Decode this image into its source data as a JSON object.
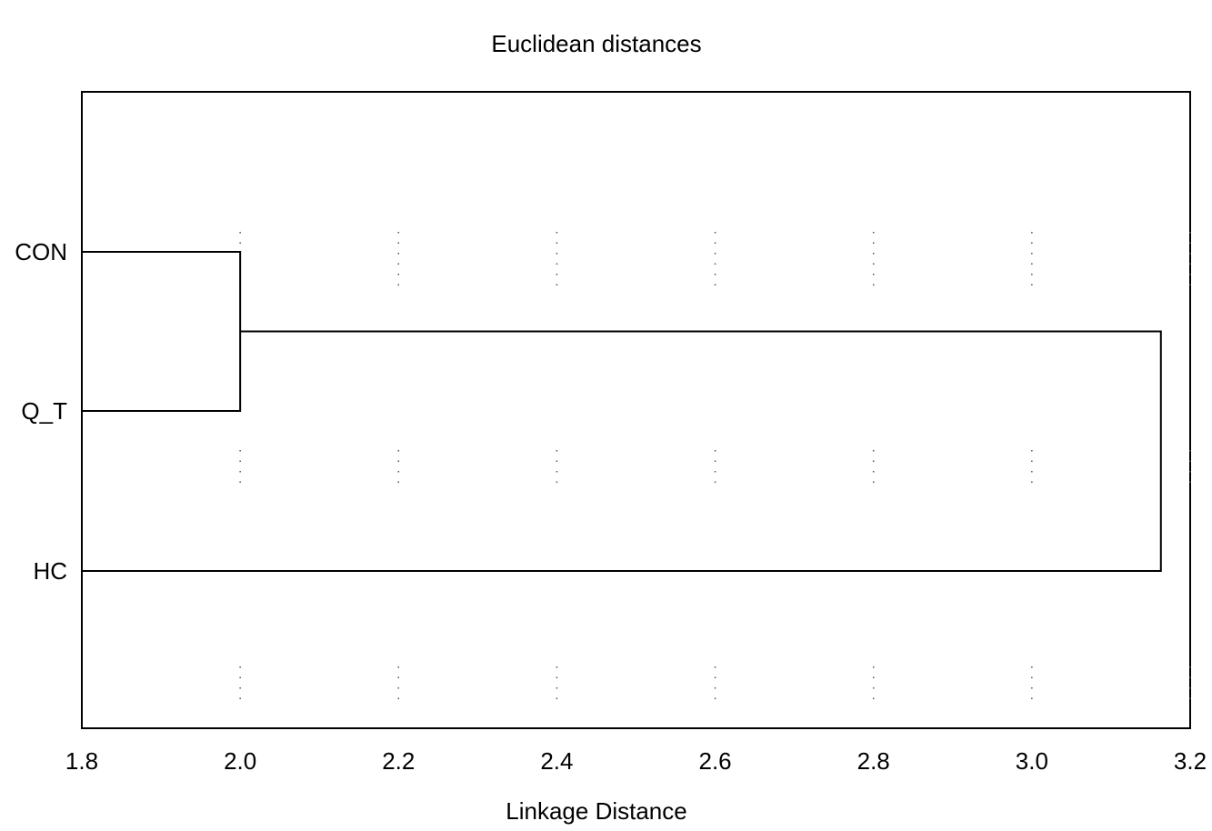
{
  "chart_data": {
    "type": "dendrogram",
    "title": "Euclidean distances",
    "xlabel": "Linkage Distance",
    "ylabel": "",
    "xlim": [
      1.8,
      3.2
    ],
    "xticks": [
      "1.8",
      "2.0",
      "2.2",
      "2.4",
      "2.6",
      "2.8",
      "3.0",
      "3.2"
    ],
    "leaves": [
      "CON",
      "Q_T",
      "HC"
    ],
    "merges": [
      {
        "members": [
          "CON",
          "Q_T"
        ],
        "distance": 2.0
      },
      {
        "members": [
          "CON+Q_T",
          "HC"
        ],
        "distance": 3.163
      }
    ],
    "grid": true,
    "line_color": "#000000",
    "grid_color": "#555555"
  }
}
